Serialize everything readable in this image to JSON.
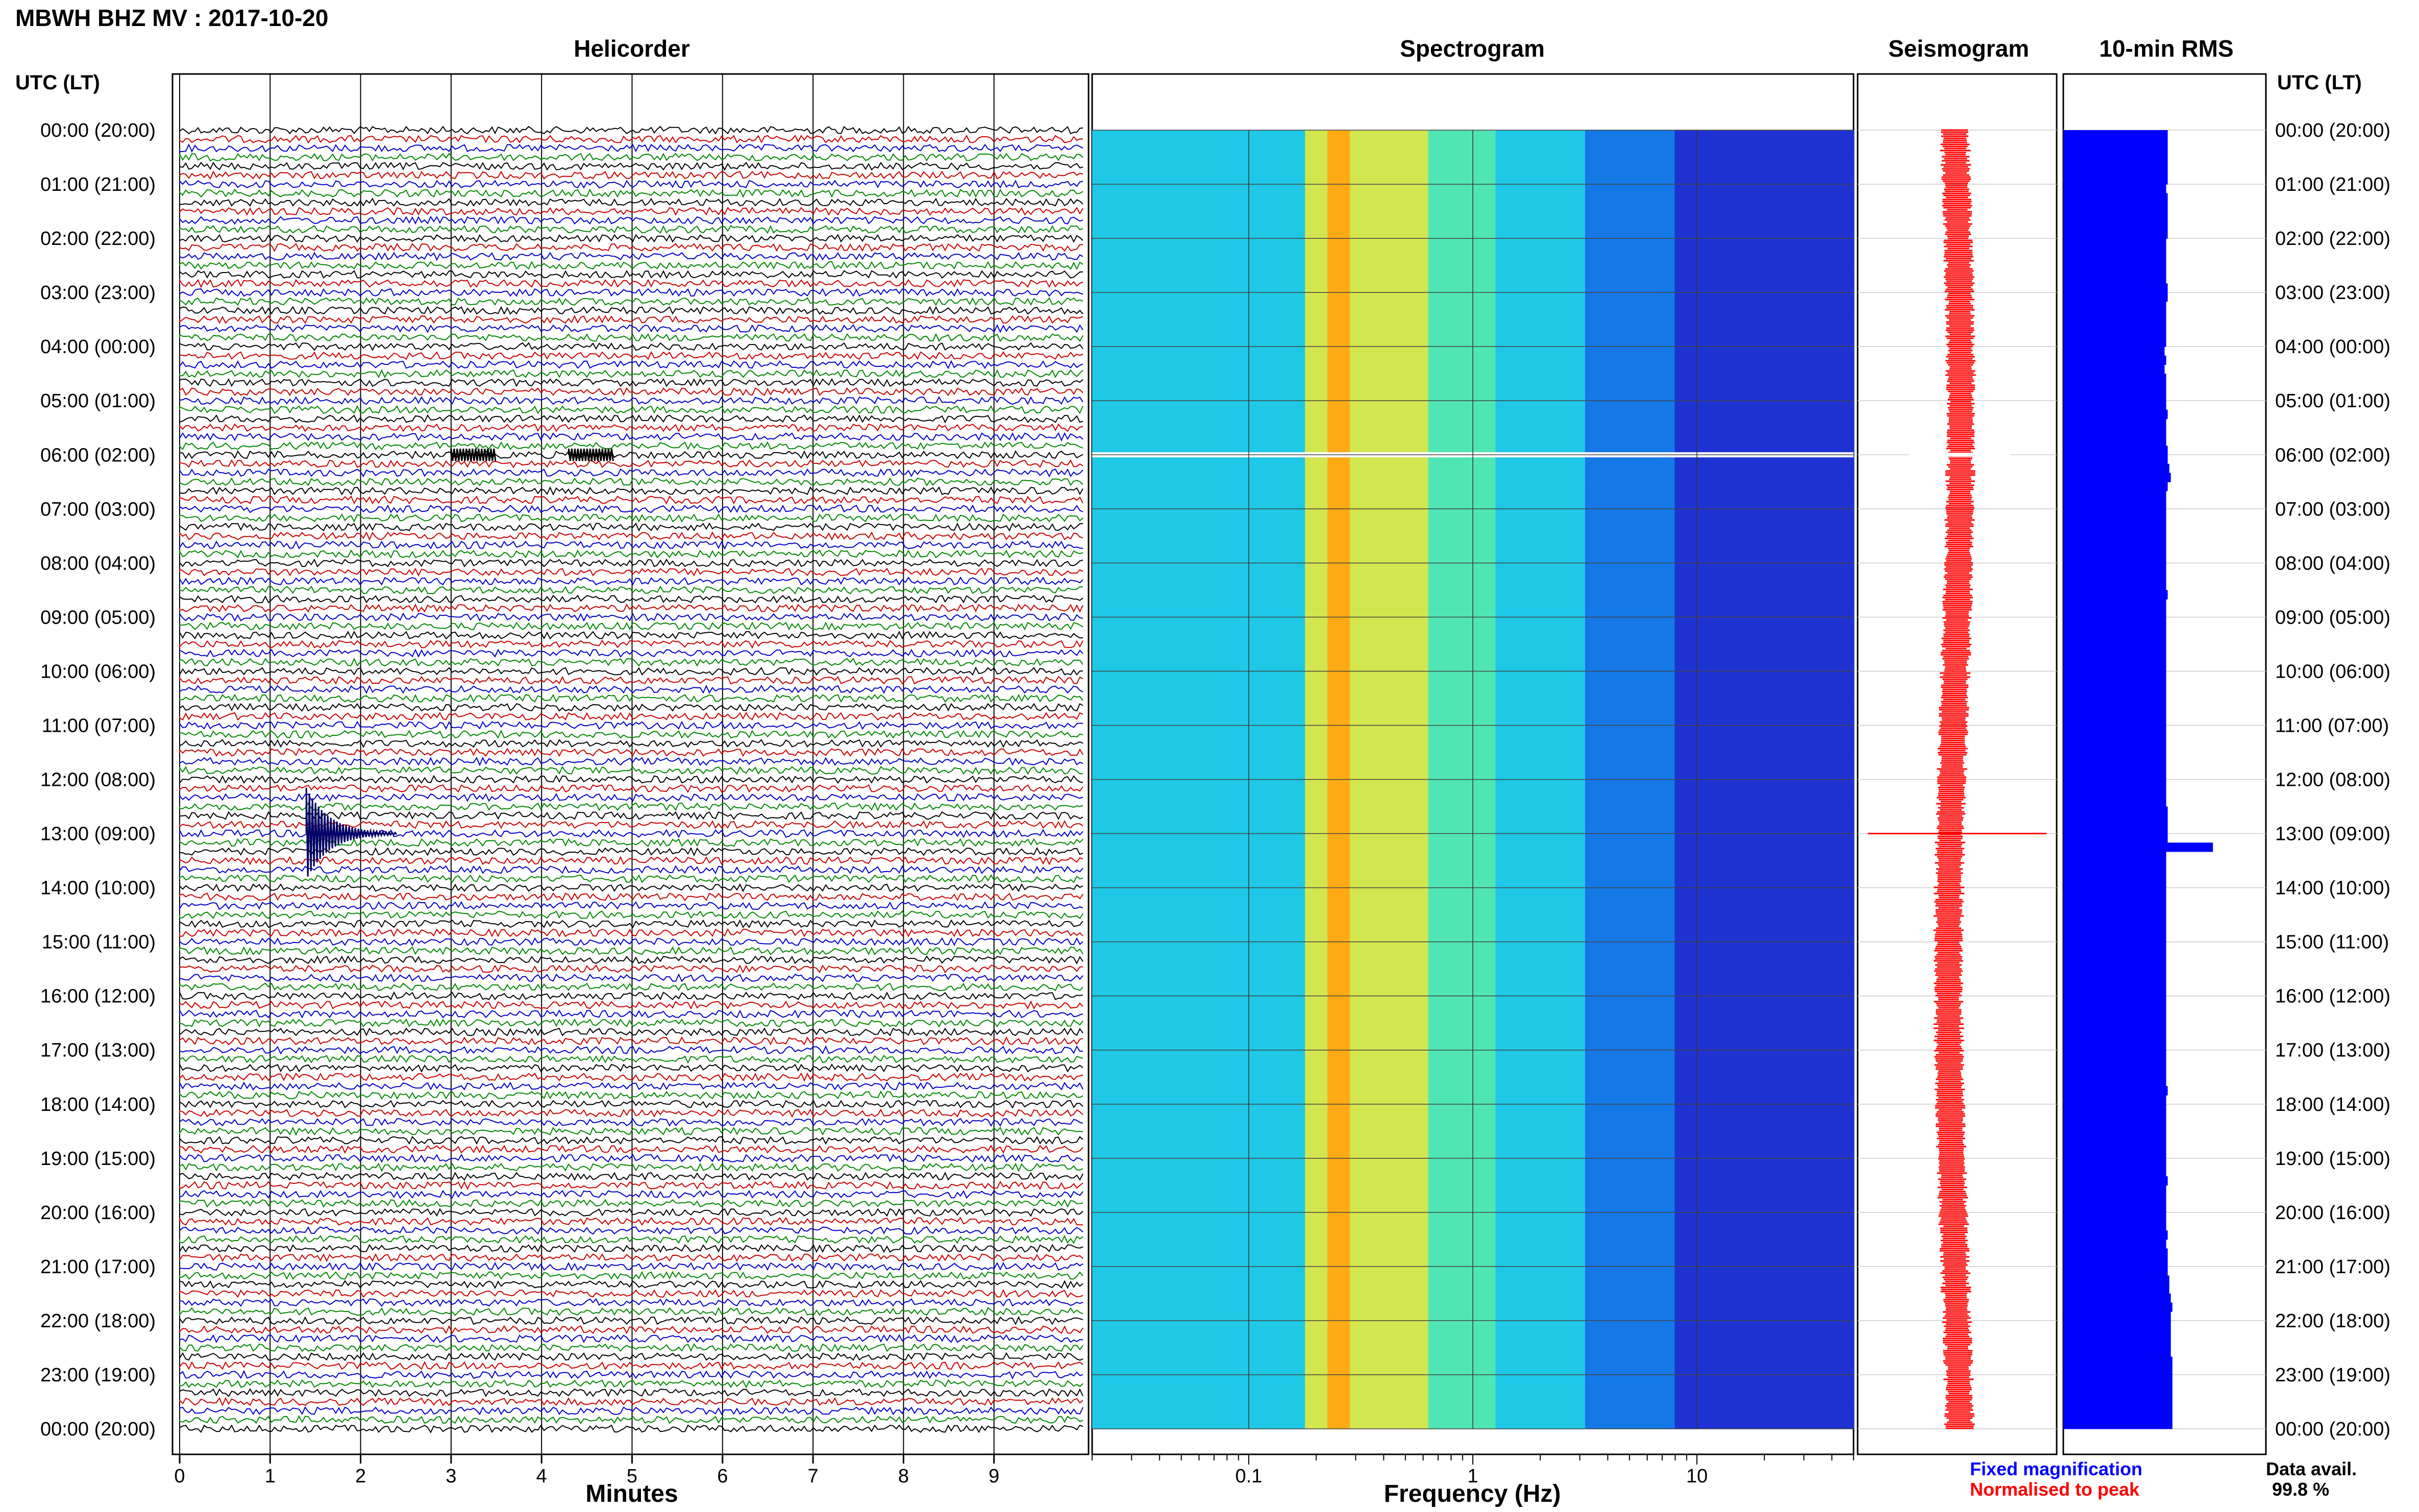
{
  "header": {
    "title": "MBWH BHZ MV : 2017-10-20"
  },
  "panels": {
    "helicorder": "Helicorder",
    "spectrogram": "Spectrogram",
    "seismogram": "Seismogram",
    "rms": "10-min RMS"
  },
  "time_axis": {
    "header": "UTC (LT)",
    "labels": [
      "00:00 (20:00)",
      "01:00 (21:00)",
      "02:00 (22:00)",
      "03:00 (23:00)",
      "04:00 (00:00)",
      "05:00 (01:00)",
      "06:00 (02:00)",
      "07:00 (03:00)",
      "08:00 (04:00)",
      "09:00 (05:00)",
      "10:00 (06:00)",
      "11:00 (07:00)",
      "12:00 (08:00)",
      "13:00 (09:00)",
      "14:00 (10:00)",
      "15:00 (11:00)",
      "16:00 (12:00)",
      "17:00 (13:00)",
      "18:00 (14:00)",
      "19:00 (15:00)",
      "20:00 (16:00)",
      "21:00 (17:00)",
      "22:00 (18:00)",
      "23:00 (19:00)",
      "00:00 (20:00)"
    ]
  },
  "legend": {
    "fixed": "Fixed magnification",
    "normalised": "Normalised to peak",
    "fixed_color": "#0000ff",
    "normalised_color": "#ff0000"
  },
  "availability": {
    "label": "Data avail.",
    "value": "99.8 %"
  },
  "chart_data": [
    {
      "type": "line",
      "title": "Helicorder",
      "xlabel": "Minutes",
      "xticks": [
        "0",
        "1",
        "2",
        "3",
        "4",
        "5",
        "6",
        "7",
        "8",
        "9"
      ],
      "xlim": [
        0,
        10
      ],
      "trace_colors": [
        "#000000",
        "#cc0000",
        "#0000cc",
        "#008800"
      ],
      "traces_per_hour": 6,
      "hours": 24,
      "events": [
        {
          "hour": 13,
          "minute": 1.4,
          "note": "large event"
        },
        {
          "hour": 6,
          "minute": 3.0,
          "note": "small burst"
        },
        {
          "hour": 6,
          "minute": 4.3,
          "note": "small burst"
        }
      ]
    },
    {
      "type": "heatmap",
      "title": "Spectrogram",
      "xlabel": "Frequency (Hz)",
      "xscale": "log",
      "xticks": [
        "0.1",
        "1",
        "10"
      ],
      "xlim": [
        0.02,
        50
      ],
      "hours": 24,
      "gap_hour": 6,
      "colormap": [
        "#1e32d2",
        "#1478e6",
        "#1ec8e6",
        "#50e6b4",
        "#d2e650",
        "#ffaa14"
      ]
    },
    {
      "type": "line",
      "title": "Seismogram",
      "series": [
        {
          "name": "Fixed magnification",
          "color": "#0000ff"
        },
        {
          "name": "Normalised to peak",
          "color": "#ff0000"
        }
      ],
      "spike_hour": 13,
      "gap_hour": 6
    },
    {
      "type": "bar",
      "title": "10-min RMS",
      "hours": 24,
      "bar_color": "#0000ff",
      "values": [
        67,
        67,
        67,
        67,
        67,
        67,
        66,
        67,
        67,
        67,
        67,
        67,
        66,
        66,
        66,
        66,
        66,
        67,
        67,
        66,
        66,
        66,
        66,
        66,
        65,
        66,
        65,
        66,
        66,
        66,
        66,
        67,
        66,
        66,
        66,
        67,
        67,
        68,
        69,
        67,
        66,
        66,
        66,
        66,
        66,
        66,
        66,
        66,
        66,
        66,
        66,
        67,
        66,
        66,
        66,
        66,
        66,
        66,
        66,
        66,
        66,
        66,
        66,
        66,
        66,
        66,
        66,
        66,
        66,
        66,
        66,
        66,
        66,
        66,
        66,
        67,
        67,
        67,
        67,
        96,
        66,
        66,
        66,
        66,
        66,
        66,
        66,
        66,
        66,
        66,
        66,
        66,
        66,
        66,
        66,
        66,
        66,
        66,
        66,
        66,
        66,
        66,
        66,
        66,
        66,
        66,
        67,
        66,
        66,
        66,
        66,
        66,
        66,
        66,
        66,
        66,
        67,
        66,
        66,
        66,
        66,
        66,
        67,
        66,
        67,
        67,
        67,
        68,
        68,
        69,
        70,
        69,
        69,
        69,
        69,
        69,
        70,
        70,
        70,
        70,
        70,
        70,
        70,
        70
      ]
    }
  ]
}
